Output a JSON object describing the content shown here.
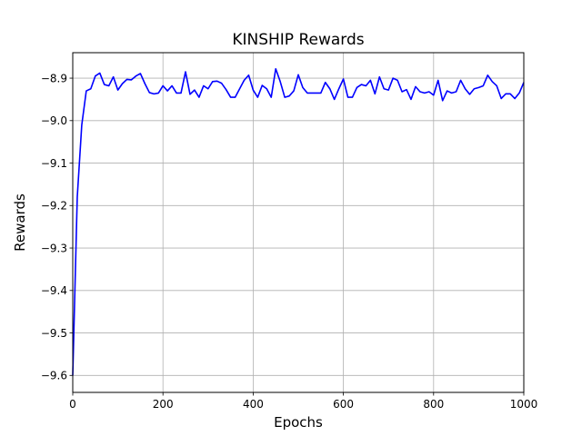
{
  "chart_data": {
    "type": "line",
    "title": "KINSHIP Rewards",
    "xlabel": "Epochs",
    "ylabel": "Rewards",
    "xlim": [
      0,
      1000
    ],
    "ylim": [
      -9.64,
      -8.84
    ],
    "xticks": [
      0,
      200,
      400,
      600,
      800,
      1000
    ],
    "yticks": [
      -9.6,
      -9.5,
      -9.4,
      -9.3,
      -9.2,
      -9.1,
      -9.0,
      -8.9
    ],
    "xtick_labels": [
      "0",
      "200",
      "400",
      "600",
      "800",
      "1000"
    ],
    "ytick_labels": [
      "−9.6",
      "−9.5",
      "−9.4",
      "−9.3",
      "−9.2",
      "−9.1",
      "−9.0",
      "−8.9"
    ],
    "grid": true,
    "line_color": "#0000ff",
    "series": [
      {
        "x": [
          0,
          10,
          20,
          30,
          40,
          50,
          60,
          70,
          80,
          90,
          100,
          110,
          120,
          130,
          140,
          150,
          160,
          170,
          180,
          190,
          200,
          210,
          220,
          230,
          240,
          250,
          260,
          270,
          280,
          290,
          300,
          310,
          320,
          330,
          340,
          350,
          360,
          370,
          380,
          390,
          400,
          410,
          420,
          430,
          440,
          450,
          460,
          470,
          480,
          490,
          500,
          510,
          520,
          530,
          540,
          550,
          560,
          570,
          580,
          590,
          600,
          610,
          620,
          630,
          640,
          650,
          660,
          670,
          680,
          690,
          700,
          710,
          720,
          730,
          740,
          750,
          760,
          770,
          780,
          790,
          800,
          810,
          820,
          830,
          840,
          850,
          860,
          870,
          880,
          890,
          900,
          910,
          920,
          930,
          940,
          950,
          960,
          970,
          980,
          990,
          1000
        ],
        "values": [
          -9.6,
          -9.18,
          -9.01,
          -8.93,
          -8.925,
          -8.895,
          -8.888,
          -8.915,
          -8.918,
          -8.897,
          -8.928,
          -8.913,
          -8.903,
          -8.904,
          -8.895,
          -8.889,
          -8.913,
          -8.934,
          -8.937,
          -8.935,
          -8.918,
          -8.93,
          -8.918,
          -8.935,
          -8.935,
          -8.885,
          -8.938,
          -8.928,
          -8.945,
          -8.918,
          -8.925,
          -8.908,
          -8.907,
          -8.912,
          -8.927,
          -8.945,
          -8.945,
          -8.925,
          -8.905,
          -8.893,
          -8.928,
          -8.945,
          -8.917,
          -8.925,
          -8.945,
          -8.878,
          -8.908,
          -8.945,
          -8.942,
          -8.93,
          -8.892,
          -8.922,
          -8.935,
          -8.935,
          -8.935,
          -8.935,
          -8.91,
          -8.925,
          -8.95,
          -8.925,
          -8.902,
          -8.945,
          -8.945,
          -8.922,
          -8.915,
          -8.918,
          -8.905,
          -8.937,
          -8.897,
          -8.925,
          -8.928,
          -8.9,
          -8.905,
          -8.932,
          -8.927,
          -8.95,
          -8.92,
          -8.932,
          -8.935,
          -8.932,
          -8.94,
          -8.905,
          -8.953,
          -8.93,
          -8.935,
          -8.932,
          -8.905,
          -8.925,
          -8.938,
          -8.925,
          -8.922,
          -8.918,
          -8.893,
          -8.908,
          -8.918,
          -8.948,
          -8.937,
          -8.937,
          -8.948,
          -8.935,
          -8.91
        ]
      }
    ]
  }
}
